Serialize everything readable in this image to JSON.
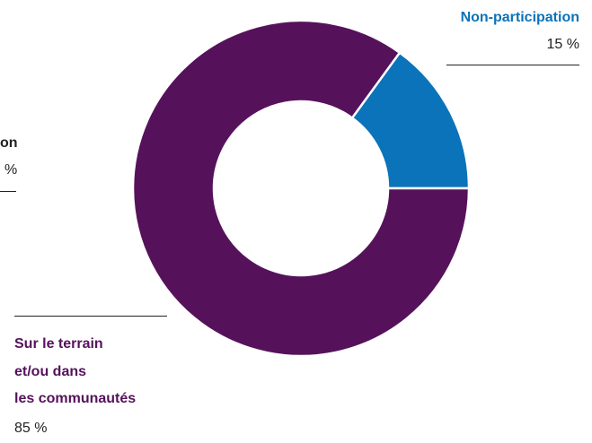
{
  "chart_data": {
    "type": "donut",
    "categories": [
      "Non-participation",
      "Sur le terrain\net/ou dans\nles communautés"
    ],
    "values": [
      15,
      85
    ],
    "value_labels": [
      "15 %",
      "85 %"
    ],
    "colors": [
      "#0b73b9",
      "#55125b"
    ],
    "cropped_label": [
      "on",
      "%"
    ]
  }
}
